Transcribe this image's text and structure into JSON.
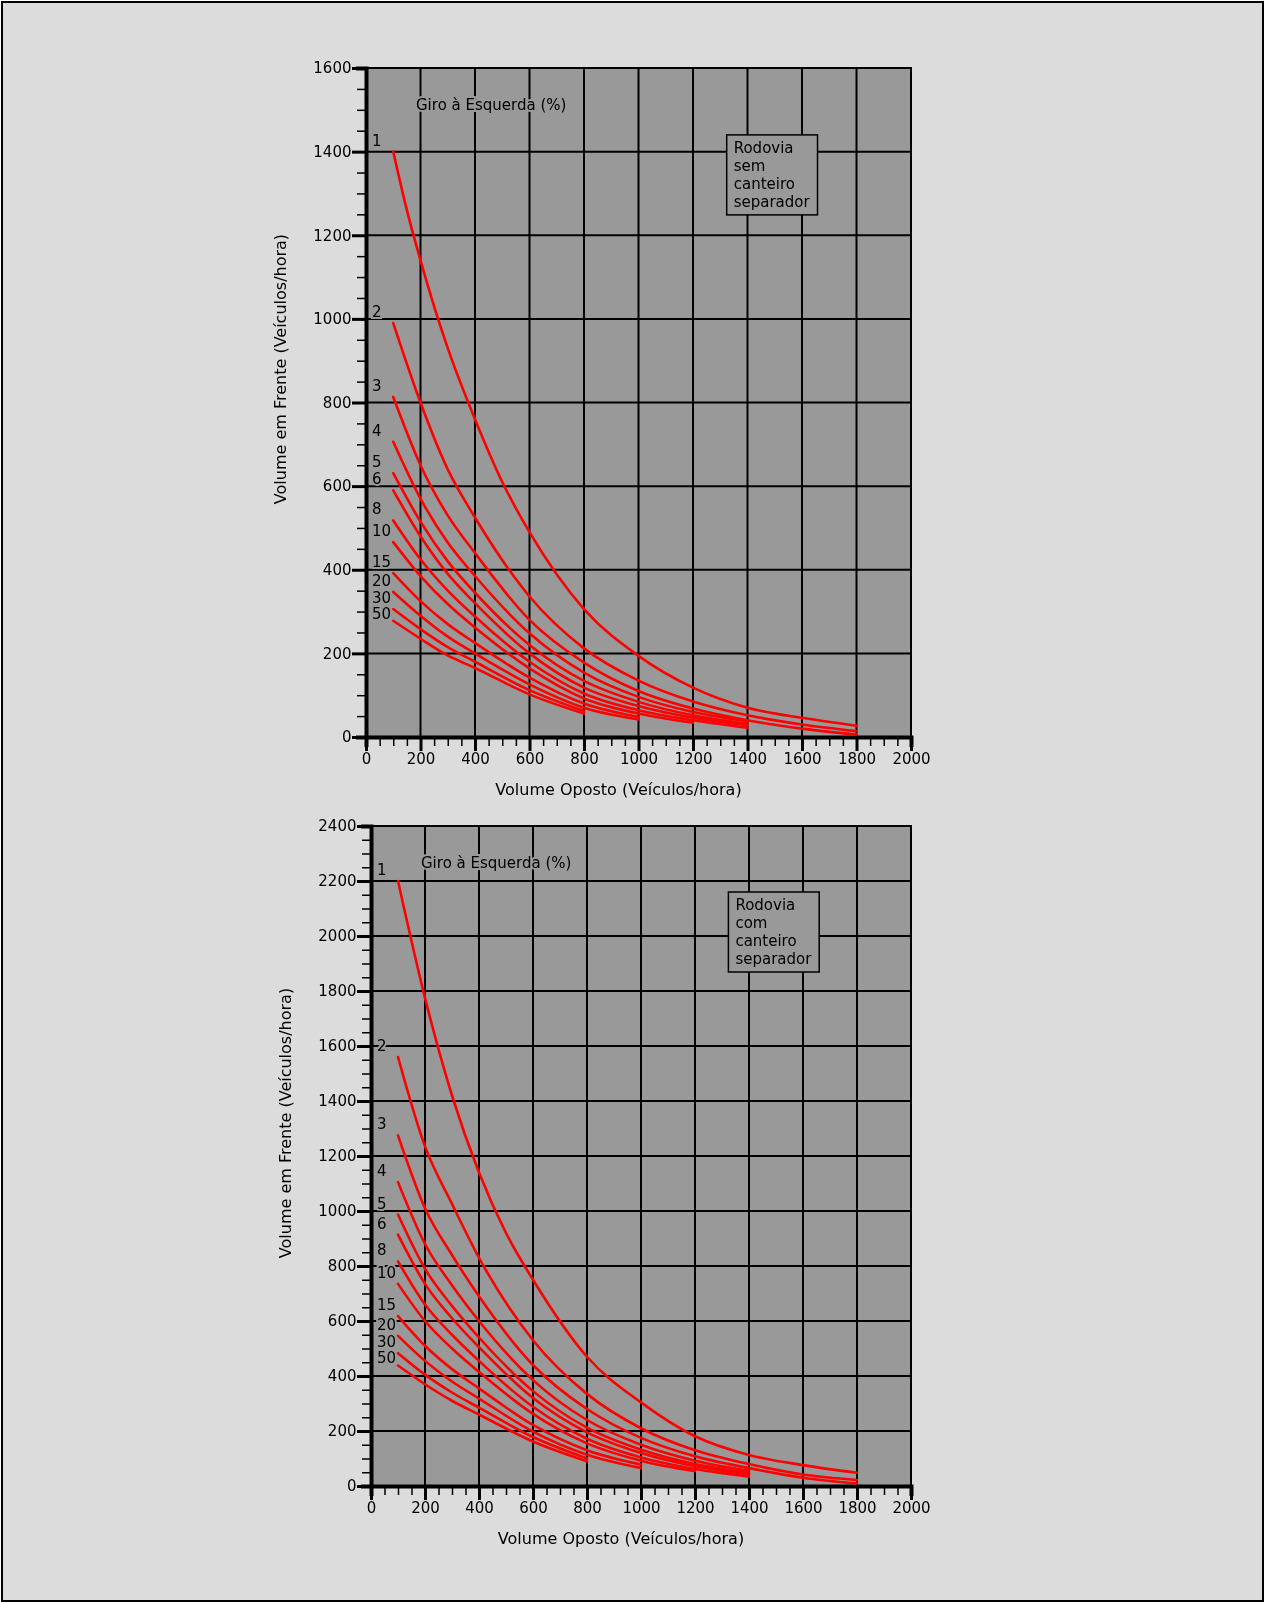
{
  "chart_data": [
    {
      "type": "line",
      "legend_title": "Giro à Esquerda (%)",
      "xlabel": "Volume Oposto (Veículos/hora)",
      "ylabel": "Volume em Frente (Veículos/hora)",
      "annotations": [
        "Rodovia sem canteiro separador"
      ],
      "grid": true,
      "marker": "none",
      "line_style": "solid",
      "xlim": [
        0,
        2000
      ],
      "ylim": [
        0,
        1600
      ],
      "xticks": [
        0,
        {
          "value": 50,
          "label": null
        },
        {
          "value": 100,
          "label": null
        },
        {
          "value": 150,
          "label": null
        },
        200,
        {
          "value": 250,
          "label": null
        },
        {
          "value": 300,
          "label": null
        },
        {
          "value": 350,
          "label": null
        },
        400,
        {
          "value": 450,
          "label": null
        },
        {
          "value": 500,
          "label": null
        },
        {
          "value": 550,
          "label": null
        },
        600,
        {
          "value": 650,
          "label": null
        },
        {
          "value": 700,
          "label": null
        },
        {
          "value": 750,
          "label": null
        },
        800,
        {
          "value": 850,
          "label": null
        },
        {
          "value": 900,
          "label": null
        },
        {
          "value": 950,
          "label": null
        },
        1000,
        {
          "value": 1050,
          "label": null
        },
        {
          "value": 1100,
          "label": null
        },
        {
          "value": 1150,
          "label": null
        },
        1200,
        {
          "value": 1250,
          "label": null
        },
        {
          "value": 1300,
          "label": null
        },
        {
          "value": 1350,
          "label": null
        },
        1400,
        {
          "value": 1450,
          "label": null
        },
        {
          "value": 1500,
          "label": null
        },
        {
          "value": 1550,
          "label": null
        },
        1600,
        {
          "value": 1650,
          "label": null
        },
        {
          "value": 1700,
          "label": null
        },
        {
          "value": 1750,
          "label": null
        },
        1800,
        {
          "value": 1850,
          "label": null
        },
        {
          "value": 1900,
          "label": null
        },
        {
          "value": 1950,
          "label": null
        },
        2000
      ],
      "yticks": [
        0,
        {
          "value": 50,
          "label": null
        },
        {
          "value": 100,
          "label": null
        },
        {
          "value": 150,
          "label": null
        },
        200,
        {
          "value": 250,
          "label": null
        },
        {
          "value": 300,
          "label": null
        },
        {
          "value": 350,
          "label": null
        },
        400,
        {
          "value": 450,
          "label": null
        },
        {
          "value": 500,
          "label": null
        },
        {
          "value": 550,
          "label": null
        },
        600,
        {
          "value": 650,
          "label": null
        },
        {
          "value": 700,
          "label": null
        },
        {
          "value": 750,
          "label": null
        },
        800,
        {
          "value": 850,
          "label": null
        },
        {
          "value": 900,
          "label": null
        },
        {
          "value": 950,
          "label": null
        },
        1000,
        {
          "value": 1050,
          "label": null
        },
        {
          "value": 1100,
          "label": null
        },
        {
          "value": 1150,
          "label": null
        },
        1200,
        {
          "value": 1250,
          "label": null
        },
        {
          "value": 1300,
          "label": null
        },
        {
          "value": 1350,
          "label": null
        },
        1400,
        {
          "value": 1450,
          "label": null
        },
        {
          "value": 1500,
          "label": null
        },
        {
          "value": 1550,
          "label": null
        },
        1600
      ],
      "series": [
        {
          "name": "1",
          "color": "#ff0000",
          "x": [
            100,
            150,
            200,
            300,
            400,
            500,
            600,
            800,
            1000,
            1200,
            1400,
            1600,
            1800
          ],
          "values": [
            1400,
            1260,
            1140,
            930,
            760,
            610,
            490,
            306,
            194,
            118,
            70,
            46,
            27
          ]
        },
        {
          "name": "2",
          "color": "#ff0000",
          "x": [
            100,
            200,
            300,
            400,
            600,
            800,
            1000,
            1200,
            1400,
            1600,
            1800
          ],
          "values": [
            990,
            800,
            640,
            525,
            336,
            212,
            135,
            85,
            52,
            30,
            14
          ]
        },
        {
          "name": "3",
          "color": "#ff0000",
          "x": [
            100,
            200,
            300,
            400,
            600,
            800,
            1000,
            1200,
            1400,
            1600,
            1800
          ],
          "values": [
            813,
            650,
            530,
            440,
            280,
            178,
            110,
            68,
            40,
            20,
            6
          ]
        },
        {
          "name": "4",
          "color": "#ff0000",
          "x": [
            100,
            200,
            300,
            400,
            600,
            800,
            1000,
            1200,
            1400
          ],
          "values": [
            706,
            570,
            465,
            385,
            248,
            154,
            96,
            60,
            38
          ]
        },
        {
          "name": "5",
          "color": "#ff0000",
          "x": [
            100,
            200,
            300,
            400,
            600,
            800,
            1000,
            1200,
            1400
          ],
          "values": [
            631,
            515,
            420,
            345,
            220,
            134,
            84,
            52,
            32
          ]
        },
        {
          "name": "6",
          "color": "#ff0000",
          "x": [
            100,
            200,
            300,
            400,
            600,
            800,
            1000,
            1200,
            1400
          ],
          "values": [
            590,
            480,
            390,
            320,
            200,
            118,
            74,
            46,
            28
          ]
        },
        {
          "name": "8",
          "color": "#ff0000",
          "x": [
            100,
            200,
            300,
            400,
            600,
            800,
            1000,
            1200,
            1400
          ],
          "values": [
            518,
            425,
            350,
            288,
            180,
            104,
            64,
            40,
            22
          ]
        },
        {
          "name": "10",
          "color": "#ff0000",
          "x": [
            100,
            200,
            300,
            400,
            600,
            800,
            1000,
            1200
          ],
          "values": [
            466,
            385,
            318,
            262,
            164,
            92,
            56,
            34
          ]
        },
        {
          "name": "15",
          "color": "#ff0000",
          "x": [
            100,
            200,
            300,
            400,
            600,
            800,
            1000
          ],
          "values": [
            392,
            325,
            270,
            225,
            142,
            80,
            48
          ]
        },
        {
          "name": "20",
          "color": "#ff0000",
          "x": [
            100,
            200,
            300,
            400,
            600,
            800,
            1000
          ],
          "values": [
            347,
            290,
            240,
            200,
            126,
            70,
            42
          ]
        },
        {
          "name": "30",
          "color": "#ff0000",
          "x": [
            100,
            200,
            300,
            400,
            600,
            800
          ],
          "values": [
            306,
            258,
            215,
            180,
            112,
            62
          ]
        },
        {
          "name": "50",
          "color": "#ff0000",
          "x": [
            100,
            200,
            300,
            400,
            600,
            800
          ],
          "values": [
            278,
            235,
            195,
            165,
            102,
            56
          ]
        }
      ]
    },
    {
      "type": "line",
      "legend_title": "Giro à Esquerda (%)",
      "xlabel": "Volume Oposto (Veículos/hora)",
      "ylabel": "Volume em Frente (Veículos/hora)",
      "annotations": [
        "Rodovia com canteiro separador"
      ],
      "grid": true,
      "marker": "none",
      "line_style": "solid",
      "xlim": [
        0,
        2000
      ],
      "ylim": [
        0,
        2400
      ],
      "xticks": [
        0,
        {
          "value": 50,
          "label": null
        },
        {
          "value": 100,
          "label": null
        },
        {
          "value": 150,
          "label": null
        },
        200,
        {
          "value": 250,
          "label": null
        },
        {
          "value": 300,
          "label": null
        },
        {
          "value": 350,
          "label": null
        },
        400,
        {
          "value": 450,
          "label": null
        },
        {
          "value": 500,
          "label": null
        },
        {
          "value": 550,
          "label": null
        },
        600,
        {
          "value": 650,
          "label": null
        },
        {
          "value": 700,
          "label": null
        },
        {
          "value": 750,
          "label": null
        },
        800,
        {
          "value": 850,
          "label": null
        },
        {
          "value": 900,
          "label": null
        },
        {
          "value": 950,
          "label": null
        },
        1000,
        {
          "value": 1050,
          "label": null
        },
        {
          "value": 1100,
          "label": null
        },
        {
          "value": 1150,
          "label": null
        },
        1200,
        {
          "value": 1250,
          "label": null
        },
        {
          "value": 1300,
          "label": null
        },
        {
          "value": 1350,
          "label": null
        },
        1400,
        {
          "value": 1450,
          "label": null
        },
        {
          "value": 1500,
          "label": null
        },
        {
          "value": 1550,
          "label": null
        },
        1600,
        {
          "value": 1650,
          "label": null
        },
        {
          "value": 1700,
          "label": null
        },
        {
          "value": 1750,
          "label": null
        },
        1800,
        {
          "value": 1850,
          "label": null
        },
        {
          "value": 1900,
          "label": null
        },
        {
          "value": 1950,
          "label": null
        },
        2000
      ],
      "yticks": [
        0,
        {
          "value": 50,
          "label": null
        },
        {
          "value": 100,
          "label": null
        },
        {
          "value": 150,
          "label": null
        },
        200,
        {
          "value": 250,
          "label": null
        },
        {
          "value": 300,
          "label": null
        },
        {
          "value": 350,
          "label": null
        },
        400,
        {
          "value": 450,
          "label": null
        },
        {
          "value": 500,
          "label": null
        },
        {
          "value": 550,
          "label": null
        },
        600,
        {
          "value": 650,
          "label": null
        },
        {
          "value": 700,
          "label": null
        },
        {
          "value": 750,
          "label": null
        },
        800,
        {
          "value": 850,
          "label": null
        },
        {
          "value": 900,
          "label": null
        },
        {
          "value": 950,
          "label": null
        },
        1000,
        {
          "value": 1050,
          "label": null
        },
        {
          "value": 1100,
          "label": null
        },
        {
          "value": 1150,
          "label": null
        },
        1200,
        {
          "value": 1250,
          "label": null
        },
        {
          "value": 1300,
          "label": null
        },
        {
          "value": 1350,
          "label": null
        },
        1400,
        {
          "value": 1450,
          "label": null
        },
        {
          "value": 1500,
          "label": null
        },
        {
          "value": 1550,
          "label": null
        },
        1600,
        {
          "value": 1650,
          "label": null
        },
        {
          "value": 1700,
          "label": null
        },
        {
          "value": 1750,
          "label": null
        },
        1800,
        {
          "value": 1850,
          "label": null
        },
        {
          "value": 1900,
          "label": null
        },
        {
          "value": 1950,
          "label": null
        },
        2000,
        {
          "value": 2050,
          "label": null
        },
        {
          "value": 2100,
          "label": null
        },
        {
          "value": 2150,
          "label": null
        },
        2200,
        {
          "value": 2250,
          "label": null
        },
        {
          "value": 2300,
          "label": null
        },
        {
          "value": 2350,
          "label": null
        },
        2400
      ],
      "series": [
        {
          "name": "1",
          "color": "#ff0000",
          "x": [
            100,
            200,
            300,
            400,
            500,
            600,
            800,
            1000,
            1200,
            1400,
            1600,
            1800
          ],
          "values": [
            2200,
            1775,
            1420,
            1140,
            920,
            750,
            470,
            304,
            181,
            113,
            76,
            48
          ]
        },
        {
          "name": "2",
          "color": "#ff0000",
          "x": [
            100,
            200,
            300,
            400,
            600,
            800,
            1000,
            1200,
            1400,
            1600,
            1800
          ],
          "values": [
            1560,
            1235,
            1026,
            830,
            530,
            335,
            210,
            130,
            80,
            42,
            22
          ]
        },
        {
          "name": "3",
          "color": "#ff0000",
          "x": [
            100,
            200,
            300,
            400,
            600,
            800,
            1000,
            1200,
            1400,
            1600,
            1800
          ],
          "values": [
            1275,
            1010,
            840,
            690,
            440,
            280,
            175,
            108,
            65,
            30,
            9
          ]
        },
        {
          "name": "4",
          "color": "#ff0000",
          "x": [
            100,
            200,
            300,
            400,
            600,
            800,
            1000,
            1200,
            1400
          ],
          "values": [
            1105,
            880,
            730,
            600,
            385,
            240,
            150,
            92,
            55
          ]
        },
        {
          "name": "5",
          "color": "#ff0000",
          "x": [
            100,
            200,
            300,
            400,
            600,
            800,
            1000,
            1200,
            1400
          ],
          "values": [
            987,
            790,
            655,
            540,
            345,
            212,
            132,
            80,
            48
          ]
        },
        {
          "name": "6",
          "color": "#ff0000",
          "x": [
            100,
            200,
            300,
            400,
            600,
            800,
            1000,
            1200,
            1400
          ],
          "values": [
            914,
            735,
            610,
            505,
            320,
            195,
            120,
            72,
            42
          ]
        },
        {
          "name": "8",
          "color": "#ff0000",
          "x": [
            100,
            200,
            300,
            400,
            600,
            800,
            1000,
            1200,
            1400
          ],
          "values": [
            817,
            660,
            550,
            455,
            288,
            172,
            104,
            62,
            34
          ]
        },
        {
          "name": "10",
          "color": "#ff0000",
          "x": [
            100,
            200,
            300,
            400,
            600,
            800,
            1000,
            1200
          ],
          "values": [
            735,
            600,
            500,
            415,
            262,
            155,
            92,
            54
          ]
        },
        {
          "name": "15",
          "color": "#ff0000",
          "x": [
            100,
            200,
            300,
            400,
            600,
            800,
            1000
          ],
          "values": [
            618,
            510,
            425,
            355,
            222,
            130,
            78
          ]
        },
        {
          "name": "20",
          "color": "#ff0000",
          "x": [
            100,
            200,
            300,
            400,
            600,
            800,
            1000
          ],
          "values": [
            546,
            455,
            380,
            318,
            198,
            114,
            66
          ]
        },
        {
          "name": "30",
          "color": "#ff0000",
          "x": [
            100,
            200,
            300,
            400,
            600,
            800
          ],
          "values": [
            483,
            405,
            340,
            285,
            178,
            100
          ]
        },
        {
          "name": "50",
          "color": "#ff0000",
          "x": [
            100,
            200,
            300,
            400,
            600,
            800
          ],
          "values": [
            438,
            370,
            310,
            260,
            162,
            90
          ]
        }
      ]
    }
  ]
}
